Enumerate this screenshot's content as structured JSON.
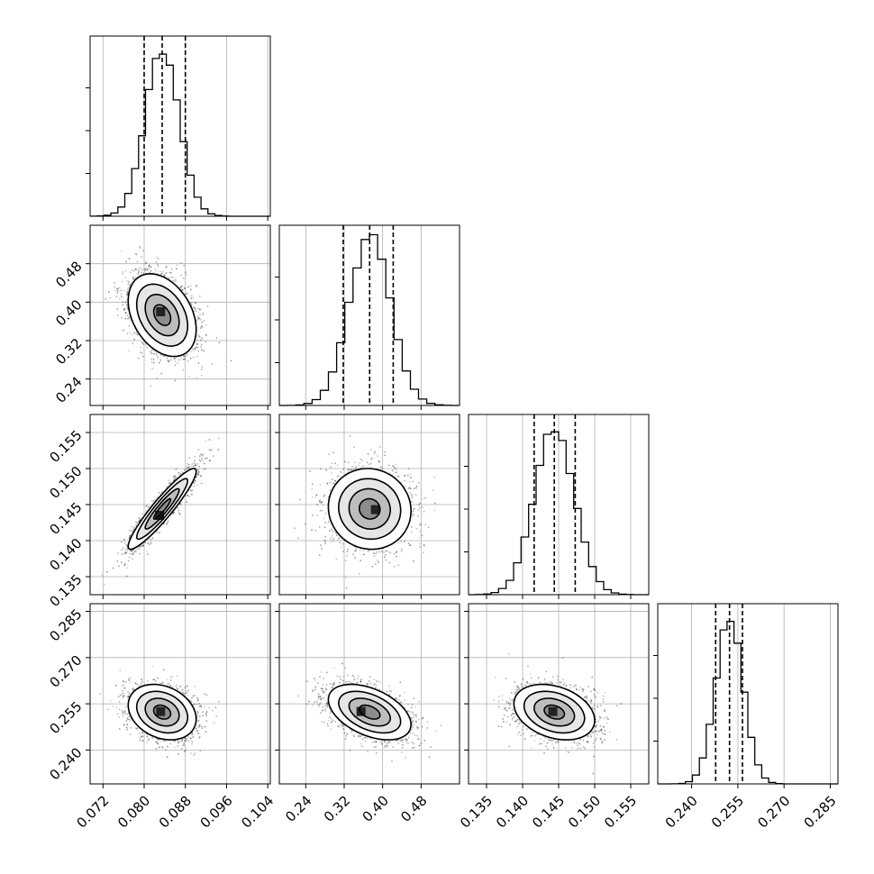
{
  "chart_data": {
    "type": "corner",
    "title": "",
    "grid": true,
    "n_params": 4,
    "params": [
      {
        "index": 0,
        "range": [
          0.0695,
          0.1045
        ],
        "ticks": [
          "0.072",
          "0.080",
          "0.088",
          "0.096",
          "0.104"
        ],
        "mean": 0.0835,
        "std": 0.0033,
        "quantiles": [
          0.08,
          0.0835,
          0.088
        ],
        "hist": {
          "bins": 26,
          "max_density": 1.08
        }
      },
      {
        "index": 1,
        "range": [
          0.185,
          0.56
        ],
        "ticks": [
          "0.24",
          "0.32",
          "0.40",
          "0.48"
        ],
        "mean": 0.373,
        "std": 0.043,
        "quantiles": [
          0.318,
          0.373,
          0.422
        ],
        "hist": {
          "bins": 22,
          "max_density": 1.06
        }
      },
      {
        "index": 2,
        "range": [
          0.1325,
          0.1575
        ],
        "ticks": [
          "0.135",
          "0.140",
          "0.145",
          "0.150",
          "0.155"
        ],
        "mean": 0.1444,
        "std": 0.0028,
        "quantiles": [
          0.1416,
          0.1444,
          0.1473
        ],
        "hist": {
          "bins": 24,
          "max_density": 1.08
        }
      },
      {
        "index": 3,
        "range": [
          0.229,
          0.2875
        ],
        "ticks": [
          "0.240",
          "0.255",
          "0.270",
          "0.285"
        ],
        "mean": 0.2523,
        "std": 0.0045,
        "quantiles": [
          0.2478,
          0.2523,
          0.2565
        ],
        "hist": {
          "bins": 26,
          "max_density": 1.1
        }
      }
    ],
    "pairs": [
      {
        "row": 1,
        "col": 0,
        "correlation": -0.35,
        "peak": [
          0.0832,
          0.38
        ]
      },
      {
        "row": 2,
        "col": 0,
        "correlation": 0.93,
        "peak": [
          0.083,
          0.1435
        ]
      },
      {
        "row": 2,
        "col": 1,
        "correlation": -0.05,
        "peak": [
          0.385,
          0.1443
        ]
      },
      {
        "row": 3,
        "col": 0,
        "correlation": -0.25,
        "peak": [
          0.0832,
          0.2525
        ]
      },
      {
        "row": 3,
        "col": 1,
        "correlation": -0.45,
        "peak": [
          0.355,
          0.2525
        ]
      },
      {
        "row": 3,
        "col": 2,
        "correlation": -0.3,
        "peak": [
          0.1442,
          0.2525
        ]
      }
    ],
    "density_levels": [
      0.118,
      0.393,
      0.675,
      0.865
    ],
    "scatter_color": "#000000",
    "line_color": "#000000",
    "grid_color": "#b0b0b0"
  }
}
